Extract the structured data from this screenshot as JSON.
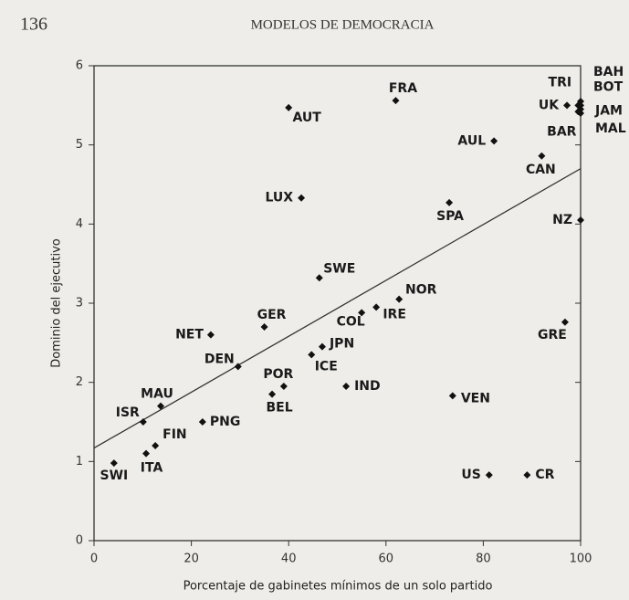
{
  "page_number": "136",
  "running_head": "MODELOS DE DEMOCRACIA",
  "chart_data": {
    "type": "scatter",
    "x_label": "Porcentaje de gabinetes mínimos de un solo partido",
    "y_label": "Dominio del ejecutivo",
    "labels": [
      "SWI",
      "ITA",
      "FIN",
      "ISR",
      "MAU",
      "PNG",
      "DEN",
      "NET",
      "GER",
      "POR",
      "BEL",
      "ICE",
      "JPN",
      "COL",
      "IRE",
      "NOR",
      "IND",
      "SWE",
      "LUX",
      "AUT",
      "FRA",
      "SPA",
      "VEN",
      "US",
      "CR",
      "GRE",
      "NZ",
      "AUL",
      "CAN",
      "UK",
      "TRI",
      "BAH",
      "BOT",
      "JAM",
      "MAL",
      "BAR"
    ],
    "x": [
      4.1,
      10.7,
      12.6,
      10.1,
      13.7,
      22.3,
      29.6,
      24,
      35,
      39,
      36.6,
      44.7,
      46.9,
      55,
      58,
      62.7,
      51.8,
      46.3,
      42.6,
      40,
      62,
      73,
      73.7,
      81.2,
      89,
      96.8,
      100,
      82.2,
      92,
      97.2,
      99.5,
      100,
      100,
      100,
      100,
      99.5
    ],
    "values": [
      0.98,
      1.1,
      1.2,
      1.5,
      1.7,
      1.5,
      2.2,
      2.6,
      2.7,
      1.95,
      1.85,
      2.35,
      2.45,
      2.88,
      2.95,
      3.05,
      1.95,
      3.32,
      4.33,
      5.47,
      5.56,
      4.27,
      1.83,
      0.83,
      0.83,
      2.76,
      4.05,
      5.05,
      4.86,
      5.5,
      5.5,
      5.55,
      5.5,
      5.45,
      5.4,
      5.42
    ],
    "color": "#111111",
    "trendline": {
      "x": [
        0,
        100
      ],
      "y": [
        1.17,
        4.7
      ]
    },
    "xlim": [
      0,
      100
    ],
    "xticks": [
      0,
      20,
      40,
      60,
      80,
      100
    ],
    "ylim": [
      0,
      6
    ],
    "yticks": [
      0,
      1,
      2,
      3,
      4,
      5,
      6
    ]
  }
}
